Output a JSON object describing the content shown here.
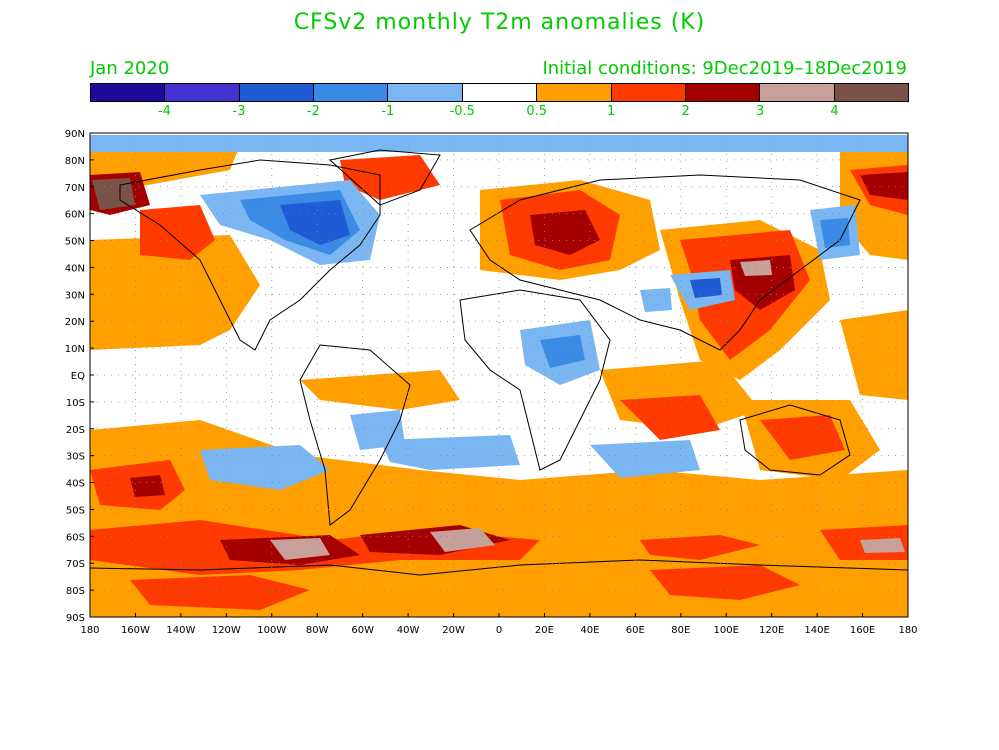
{
  "title": "CFSv2 monthly T2m anomalies (K)",
  "subtitle_left": "Jan 2020",
  "subtitle_right": "Initial conditions: 9Dec2019–18Dec2019",
  "legend": {
    "colors": [
      "#1e0a9a",
      "#4433d0",
      "#1f5bd4",
      "#3a8ae6",
      "#7ab7f2",
      "#ffffff",
      "#ff9f00",
      "#ff3a00",
      "#a50000",
      "#c8a09a",
      "#7a5248"
    ],
    "tick_labels": [
      "-4",
      "-3",
      "-2",
      "-1",
      "-0.5",
      "0.5",
      "1",
      "2",
      "3",
      "4"
    ]
  },
  "map": {
    "lat_labels": [
      "90N",
      "80N",
      "70N",
      "60N",
      "50N",
      "40N",
      "30N",
      "20N",
      "10N",
      "EQ",
      "10S",
      "20S",
      "30S",
      "40S",
      "50S",
      "60S",
      "70S",
      "80S",
      "90S"
    ],
    "lon_labels": [
      "180",
      "160W",
      "140W",
      "120W",
      "100W",
      "80W",
      "60W",
      "40W",
      "20W",
      "0",
      "20E",
      "40E",
      "60E",
      "80E",
      "100E",
      "120E",
      "140E",
      "160E",
      "180"
    ]
  }
}
